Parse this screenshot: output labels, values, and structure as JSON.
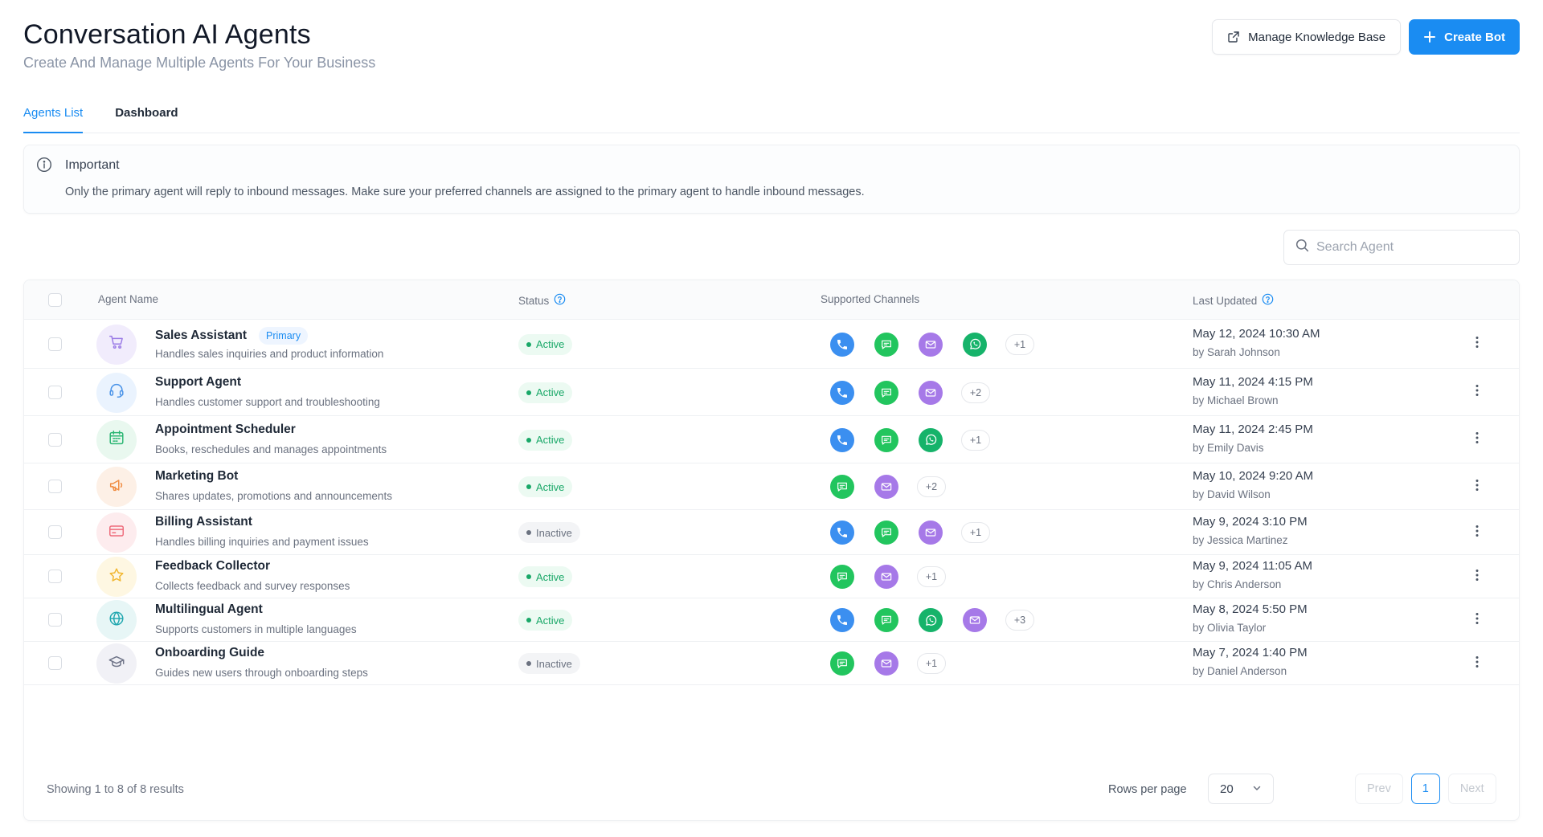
{
  "header": {
    "title": "Conversation AI Agents",
    "subtitle": "Create And Manage Multiple Agents For Your Business",
    "manage_kb_label": "Manage Knowledge Base",
    "create_bot_label": "Create Bot"
  },
  "tabs": [
    {
      "label": "Agents List",
      "active": true
    },
    {
      "label": "Dashboard",
      "active": false
    }
  ],
  "notice": {
    "title": "Important",
    "text": "Only the primary agent will reply to inbound messages. Make sure your preferred channels are assigned to the primary agent to handle inbound messages."
  },
  "search": {
    "placeholder": "Search Agent",
    "value": ""
  },
  "table": {
    "columns": {
      "agent_name": "Agent Name",
      "status": "Status",
      "channels": "Supported Channels",
      "last_updated": "Last Updated"
    },
    "rows": [
      {
        "name": "Sales Assistant",
        "badge": "Primary",
        "desc": "Handles sales inquiries and product information",
        "status": "Active",
        "channels": [
          "phone",
          "chat",
          "email",
          "whatsapp"
        ],
        "more": "+1",
        "date": "May 12, 2024 10:30 AM",
        "by": "by Sarah Johnson",
        "icon": "cart-icon",
        "avatar_bg": "#f1ecfc",
        "icon_color": "#9b7be6"
      },
      {
        "name": "Support Agent",
        "badge": "",
        "desc": "Handles customer support and troubleshooting",
        "status": "Active",
        "channels": [
          "phone",
          "chat",
          "email"
        ],
        "more": "+2",
        "date": "May 11, 2024 4:15 PM",
        "by": "by Michael Brown",
        "icon": "headset-icon",
        "avatar_bg": "#eaf3fe",
        "icon_color": "#4a93e8"
      },
      {
        "name": "Appointment Scheduler",
        "badge": "",
        "desc": "Books, reschedules and manages appointments",
        "status": "Active",
        "channels": [
          "phone",
          "chat",
          "whatsapp"
        ],
        "more": "+1",
        "date": "May 11, 2024 2:45 PM",
        "by": "by Emily Davis",
        "icon": "calendar-icon",
        "avatar_bg": "#e9f8ef",
        "icon_color": "#2bb673"
      },
      {
        "name": "Marketing Bot",
        "badge": "",
        "desc": "Shares updates, promotions and announcements",
        "status": "Active",
        "channels": [
          "chat",
          "email"
        ],
        "more": "+2",
        "date": "May 10, 2024 9:20 AM",
        "by": "by David Wilson",
        "icon": "megaphone-icon",
        "avatar_bg": "#fdf0e6",
        "icon_color": "#f08c42"
      },
      {
        "name": "Billing Assistant",
        "badge": "",
        "desc": "Handles billing inquiries and payment issues",
        "status": "Inactive",
        "channels": [
          "phone",
          "chat",
          "email"
        ],
        "more": "+1",
        "date": "May 9, 2024 3:10 PM",
        "by": "by Jessica Martinez",
        "icon": "card-icon",
        "avatar_bg": "#fdecee",
        "icon_color": "#ee6b7b"
      },
      {
        "name": "Feedback Collector",
        "badge": "",
        "desc": "Collects feedback and survey responses",
        "status": "Active",
        "channels": [
          "chat",
          "email"
        ],
        "more": "+1",
        "date": "May 9, 2024 11:05 AM",
        "by": "by Chris Anderson",
        "icon": "star-icon",
        "avatar_bg": "#fef7e2",
        "icon_color": "#f1b52c"
      },
      {
        "name": "Multilingual Agent",
        "badge": "",
        "desc": "Supports customers in multiple languages",
        "status": "Active",
        "channels": [
          "phone",
          "chat",
          "whatsapp",
          "email"
        ],
        "more": "+3",
        "date": "May 8, 2024 5:50 PM",
        "by": "by Olivia Taylor",
        "icon": "globe-icon",
        "avatar_bg": "#e7f6f6",
        "icon_color": "#23a8b0"
      },
      {
        "name": "Onboarding Guide",
        "badge": "",
        "desc": "Guides new users through onboarding steps",
        "status": "Inactive",
        "channels": [
          "chat",
          "email"
        ],
        "more": "+1",
        "date": "May 7, 2024 1:40 PM",
        "by": "by Daniel Anderson",
        "icon": "graduation-cap-icon",
        "avatar_bg": "#f1f1f6",
        "icon_color": "#6f7488"
      }
    ]
  },
  "footer": {
    "showing": "Showing 1 to 8 of 8 results",
    "rows_per_page_label": "Rows per page",
    "rows_per_page_value": "20",
    "prev": "Prev",
    "page": "1",
    "next": "Next"
  },
  "colors": {
    "accent": "#1a8cf2",
    "active": "#19a868",
    "inactive": "#6b7280"
  }
}
